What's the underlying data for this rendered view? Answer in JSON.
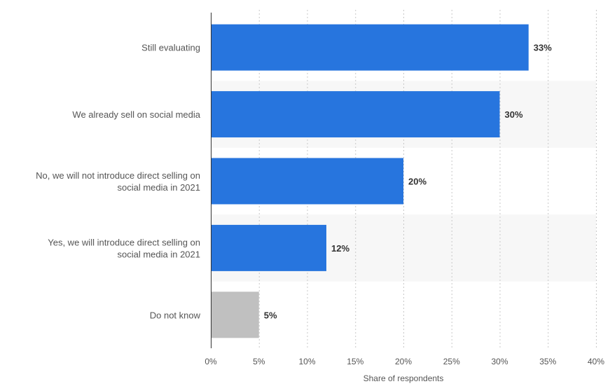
{
  "chart_data": {
    "type": "bar",
    "orientation": "horizontal",
    "categories": [
      "Still evaluating",
      "We already sell on social media",
      "No, we will not introduce direct selling on social media in 2021",
      "Yes, we will introduce direct selling on social media in 2021",
      "Do not know"
    ],
    "category_lines": [
      [
        "Still evaluating"
      ],
      [
        "We already sell on social media"
      ],
      [
        "No, we will not introduce direct selling on",
        "social media in 2021"
      ],
      [
        "Yes, we will introduce direct selling on",
        "social media in 2021"
      ],
      [
        "Do not know"
      ]
    ],
    "values": [
      33,
      30,
      20,
      12,
      5
    ],
    "value_labels": [
      "33%",
      "30%",
      "20%",
      "12%",
      "5%"
    ],
    "bar_colors": [
      "#2775de",
      "#2775de",
      "#2775de",
      "#2775de",
      "#c0c0c0"
    ],
    "xlabel": "Share of respondents",
    "ylabel": "",
    "xlim": [
      0,
      40
    ],
    "xticks": [
      0,
      5,
      10,
      15,
      20,
      25,
      30,
      35,
      40
    ],
    "xtick_labels": [
      "0%",
      "5%",
      "10%",
      "15%",
      "20%",
      "25%",
      "30%",
      "35%",
      "40%"
    ],
    "grid": "vertical dotted",
    "legend": "none"
  },
  "colors": {
    "bar": "#2775de",
    "bar_other": "#c0c0c0",
    "band": "#f7f7f7",
    "grid": "#c8c8c8",
    "axis": "#333333",
    "text": "#555555",
    "value_text": "#333333"
  }
}
